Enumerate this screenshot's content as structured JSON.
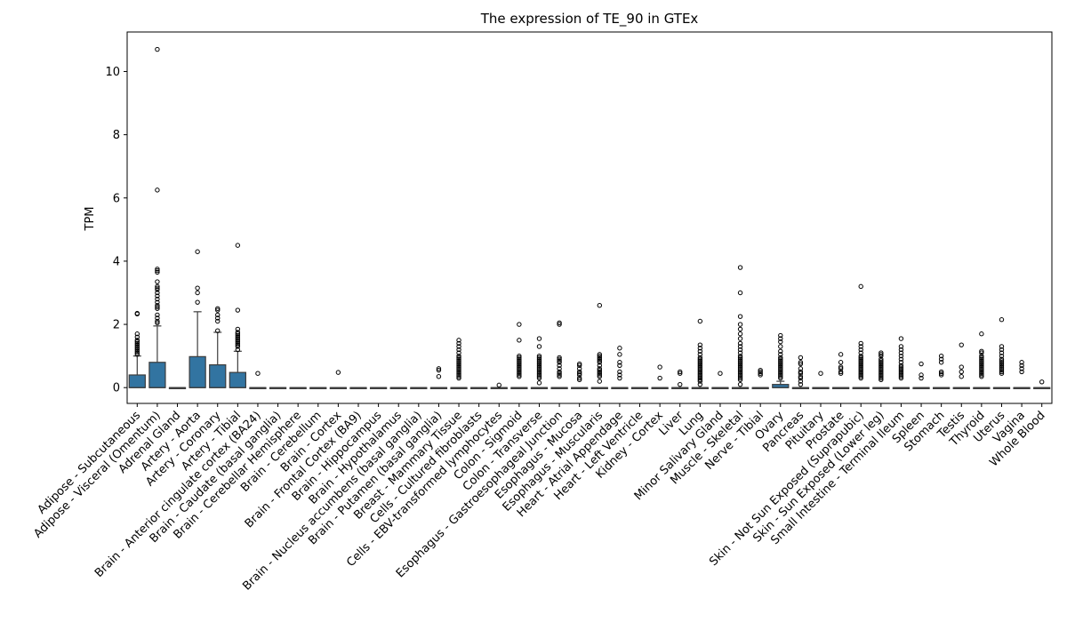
{
  "chart_data": {
    "type": "box",
    "title": "The expression of TE_90 in GTEx",
    "xlabel": "",
    "ylabel": "TPM",
    "ylim": [
      -0.5,
      11.25
    ],
    "yticks": [
      0,
      2,
      4,
      6,
      8,
      10
    ],
    "grid": false,
    "box_color": "#3274a1",
    "categories": [
      "Adipose - Subcutaneous",
      "Adipose - Visceral (Omentum)",
      "Adrenal Gland",
      "Artery - Aorta",
      "Artery - Coronary",
      "Artery - Tibial",
      "Brain - Anterior cingulate cortex (BA24)",
      "Brain - Caudate (basal ganglia)",
      "Brain - Cerebellar Hemisphere",
      "Brain - Cerebellum",
      "Brain - Cortex",
      "Brain - Frontal Cortex (BA9)",
      "Brain - Hippocampus",
      "Brain - Hypothalamus",
      "Brain - Nucleus accumbens (basal ganglia)",
      "Brain - Putamen (basal ganglia)",
      "Breast - Mammary Tissue",
      "Cells - Cultured fibroblasts",
      "Cells - EBV-transformed lymphocytes",
      "Colon - Sigmoid",
      "Colon - Transverse",
      "Esophagus - Gastroesophageal Junction",
      "Esophagus - Mucosa",
      "Esophagus - Muscularis",
      "Heart - Atrial Appendage",
      "Heart - Left Ventricle",
      "Kidney - Cortex",
      "Liver",
      "Lung",
      "Minor Salivary Gland",
      "Muscle - Skeletal",
      "Nerve - Tibial",
      "Ovary",
      "Pancreas",
      "Pituitary",
      "Prostate",
      "Skin - Not Sun Exposed (Suprapubic)",
      "Skin - Sun Exposed (Lower leg)",
      "Small Intestine - Terminal Ileum",
      "Spleen",
      "Stomach",
      "Testis",
      "Thyroid",
      "Uterus",
      "Vagina",
      "Whole Blood"
    ],
    "boxes": [
      {
        "q1": 0,
        "median": 0,
        "q3": 0.4,
        "whislo": 0,
        "whishi": 1.0,
        "fliers": [
          2.35,
          2.33,
          1.7,
          1.6,
          1.5,
          1.45,
          1.4,
          1.35,
          1.3,
          1.25,
          1.2,
          1.15,
          1.1,
          1.05
        ]
      },
      {
        "q1": 0,
        "median": 0,
        "q3": 0.8,
        "whislo": 0,
        "whishi": 1.95,
        "fliers": [
          10.7,
          6.25,
          3.75,
          3.7,
          3.65,
          3.35,
          3.2,
          3.15,
          3.1,
          3.0,
          2.9,
          2.8,
          2.7,
          2.6,
          2.55,
          2.5,
          2.3,
          2.2,
          2.1,
          2.05
        ]
      },
      {
        "q1": 0,
        "median": 0,
        "q3": 0,
        "whislo": 0,
        "whishi": 0,
        "fliers": []
      },
      {
        "q1": 0,
        "median": 0,
        "q3": 0.98,
        "whislo": 0,
        "whishi": 2.4,
        "fliers": [
          4.3,
          3.15,
          3.0,
          2.7
        ]
      },
      {
        "q1": 0,
        "median": 0,
        "q3": 0.72,
        "whislo": 0,
        "whishi": 1.75,
        "fliers": [
          2.5,
          2.45,
          2.3,
          2.2,
          2.1,
          1.8
        ]
      },
      {
        "q1": 0,
        "median": 0,
        "q3": 0.48,
        "whislo": 0,
        "whishi": 1.15,
        "fliers": [
          4.5,
          2.45,
          1.85,
          1.75,
          1.7,
          1.65,
          1.6,
          1.55,
          1.5,
          1.45,
          1.4,
          1.35,
          1.3,
          1.2
        ]
      },
      {
        "q1": 0,
        "median": 0,
        "q3": 0,
        "whislo": 0,
        "whishi": 0,
        "fliers": [
          0.45
        ]
      },
      {
        "q1": 0,
        "median": 0,
        "q3": 0,
        "whislo": 0,
        "whishi": 0,
        "fliers": []
      },
      {
        "q1": 0,
        "median": 0,
        "q3": 0,
        "whislo": 0,
        "whishi": 0,
        "fliers": []
      },
      {
        "q1": 0,
        "median": 0,
        "q3": 0,
        "whislo": 0,
        "whishi": 0,
        "fliers": []
      },
      {
        "q1": 0,
        "median": 0,
        "q3": 0,
        "whislo": 0,
        "whishi": 0,
        "fliers": [
          0.48
        ]
      },
      {
        "q1": 0,
        "median": 0,
        "q3": 0,
        "whislo": 0,
        "whishi": 0,
        "fliers": []
      },
      {
        "q1": 0,
        "median": 0,
        "q3": 0,
        "whislo": 0,
        "whishi": 0,
        "fliers": []
      },
      {
        "q1": 0,
        "median": 0,
        "q3": 0,
        "whislo": 0,
        "whishi": 0,
        "fliers": []
      },
      {
        "q1": 0,
        "median": 0,
        "q3": 0,
        "whislo": 0,
        "whishi": 0,
        "fliers": []
      },
      {
        "q1": 0,
        "median": 0,
        "q3": 0,
        "whislo": 0,
        "whishi": 0,
        "fliers": [
          0.6,
          0.55,
          0.35
        ]
      },
      {
        "q1": 0,
        "median": 0,
        "q3": 0,
        "whislo": 0,
        "whishi": 0,
        "fliers": [
          1.5,
          1.4,
          1.3,
          1.2,
          1.1,
          1.0,
          0.95,
          0.9,
          0.85,
          0.8,
          0.75,
          0.7,
          0.65,
          0.6,
          0.55,
          0.5,
          0.45,
          0.4,
          0.35,
          0.3
        ]
      },
      {
        "q1": 0,
        "median": 0,
        "q3": 0,
        "whislo": 0,
        "whishi": 0,
        "fliers": []
      },
      {
        "q1": 0,
        "median": 0,
        "q3": 0,
        "whislo": 0,
        "whishi": 0,
        "fliers": [
          0.08
        ]
      },
      {
        "q1": 0,
        "median": 0,
        "q3": 0,
        "whislo": 0,
        "whishi": 0,
        "fliers": [
          2.0,
          1.5,
          1.0,
          0.95,
          0.9,
          0.85,
          0.8,
          0.75,
          0.7,
          0.65,
          0.6,
          0.55,
          0.5,
          0.45,
          0.4,
          0.35
        ]
      },
      {
        "q1": 0,
        "median": 0,
        "q3": 0,
        "whislo": 0,
        "whishi": 0,
        "fliers": [
          1.55,
          1.3,
          1.0,
          0.95,
          0.9,
          0.85,
          0.8,
          0.75,
          0.7,
          0.65,
          0.6,
          0.55,
          0.5,
          0.45,
          0.4,
          0.35,
          0.3,
          0.15
        ]
      },
      {
        "q1": 0,
        "median": 0,
        "q3": 0,
        "whislo": 0,
        "whishi": 0,
        "fliers": [
          2.05,
          2.0,
          0.95,
          0.9,
          0.85,
          0.8,
          0.7,
          0.6,
          0.5,
          0.45,
          0.4,
          0.35
        ]
      },
      {
        "q1": 0,
        "median": 0,
        "q3": 0,
        "whislo": 0,
        "whishi": 0,
        "fliers": [
          0.75,
          0.7,
          0.6,
          0.5,
          0.45,
          0.4,
          0.3,
          0.25
        ]
      },
      {
        "q1": 0,
        "median": 0,
        "q3": 0,
        "whislo": 0,
        "whishi": 0,
        "fliers": [
          2.6,
          1.05,
          1.0,
          0.95,
          0.9,
          0.85,
          0.8,
          0.7,
          0.6,
          0.55,
          0.5,
          0.45,
          0.4,
          0.35,
          0.2
        ]
      },
      {
        "q1": 0,
        "median": 0,
        "q3": 0,
        "whislo": 0,
        "whishi": 0,
        "fliers": [
          1.25,
          1.05,
          0.8,
          0.7,
          0.5,
          0.4,
          0.3
        ]
      },
      {
        "q1": 0,
        "median": 0,
        "q3": 0,
        "whislo": 0,
        "whishi": 0,
        "fliers": []
      },
      {
        "q1": 0,
        "median": 0,
        "q3": 0,
        "whislo": 0,
        "whishi": 0,
        "fliers": [
          0.65,
          0.3
        ]
      },
      {
        "q1": 0,
        "median": 0,
        "q3": 0,
        "whislo": 0,
        "whishi": 0,
        "fliers": [
          0.5,
          0.45,
          0.1
        ]
      },
      {
        "q1": 0,
        "median": 0,
        "q3": 0,
        "whislo": 0,
        "whishi": 0,
        "fliers": [
          2.1,
          1.35,
          1.25,
          1.15,
          1.05,
          0.95,
          0.9,
          0.85,
          0.8,
          0.75,
          0.7,
          0.65,
          0.6,
          0.55,
          0.5,
          0.45,
          0.4,
          0.35,
          0.3,
          0.25,
          0.2,
          0.1
        ]
      },
      {
        "q1": 0,
        "median": 0,
        "q3": 0,
        "whislo": 0,
        "whishi": 0,
        "fliers": [
          0.45
        ]
      },
      {
        "q1": 0,
        "median": 0,
        "q3": 0,
        "whislo": 0,
        "whishi": 0,
        "fliers": [
          3.8,
          3.0,
          2.25,
          2.0,
          1.85,
          1.7,
          1.55,
          1.4,
          1.3,
          1.2,
          1.1,
          1.0,
          0.95,
          0.9,
          0.85,
          0.8,
          0.75,
          0.7,
          0.65,
          0.6,
          0.55,
          0.5,
          0.45,
          0.4,
          0.35,
          0.3,
          0.25,
          0.1
        ]
      },
      {
        "q1": 0,
        "median": 0,
        "q3": 0,
        "whislo": 0,
        "whishi": 0,
        "fliers": [
          0.55,
          0.5,
          0.45,
          0.4
        ]
      },
      {
        "q1": 0,
        "median": 0,
        "q3": 0.1,
        "whislo": 0,
        "whishi": 0.2,
        "fliers": [
          1.65,
          1.55,
          1.45,
          1.3,
          1.15,
          1.05,
          0.95,
          0.9,
          0.85,
          0.8,
          0.75,
          0.7,
          0.65,
          0.6,
          0.55,
          0.5,
          0.45,
          0.4,
          0.35,
          0.3
        ]
      },
      {
        "q1": 0,
        "median": 0,
        "q3": 0,
        "whislo": 0,
        "whishi": 0,
        "fliers": [
          0.95,
          0.8,
          0.75,
          0.6,
          0.5,
          0.45,
          0.35,
          0.3,
          0.2,
          0.1
        ]
      },
      {
        "q1": 0,
        "median": 0,
        "q3": 0,
        "whislo": 0,
        "whishi": 0,
        "fliers": [
          0.45
        ]
      },
      {
        "q1": 0,
        "median": 0,
        "q3": 0,
        "whislo": 0,
        "whishi": 0,
        "fliers": [
          1.05,
          0.8,
          0.65,
          0.6,
          0.5,
          0.45
        ]
      },
      {
        "q1": 0,
        "median": 0,
        "q3": 0,
        "whislo": 0,
        "whishi": 0,
        "fliers": [
          3.2,
          1.4,
          1.3,
          1.2,
          1.1,
          1.0,
          0.95,
          0.9,
          0.85,
          0.8,
          0.75,
          0.7,
          0.65,
          0.6,
          0.55,
          0.5,
          0.45,
          0.4,
          0.35,
          0.3
        ]
      },
      {
        "q1": 0,
        "median": 0,
        "q3": 0,
        "whislo": 0,
        "whishi": 0,
        "fliers": [
          1.1,
          1.05,
          1.0,
          0.9,
          0.85,
          0.8,
          0.75,
          0.7,
          0.65,
          0.6,
          0.55,
          0.5,
          0.45,
          0.4,
          0.35,
          0.3,
          0.25
        ]
      },
      {
        "q1": 0,
        "median": 0,
        "q3": 0,
        "whislo": 0,
        "whishi": 0,
        "fliers": [
          1.55,
          1.3,
          1.2,
          1.1,
          1.0,
          0.9,
          0.8,
          0.7,
          0.65,
          0.6,
          0.55,
          0.5,
          0.45,
          0.4,
          0.35,
          0.3
        ]
      },
      {
        "q1": 0,
        "median": 0,
        "q3": 0,
        "whislo": 0,
        "whishi": 0,
        "fliers": [
          0.75,
          0.4,
          0.3
        ]
      },
      {
        "q1": 0,
        "median": 0,
        "q3": 0,
        "whislo": 0,
        "whishi": 0,
        "fliers": [
          1.0,
          0.9,
          0.8,
          0.5,
          0.45,
          0.4
        ]
      },
      {
        "q1": 0,
        "median": 0,
        "q3": 0,
        "whislo": 0,
        "whishi": 0,
        "fliers": [
          1.35,
          0.65,
          0.5,
          0.35
        ]
      },
      {
        "q1": 0,
        "median": 0,
        "q3": 0,
        "whislo": 0,
        "whishi": 0,
        "fliers": [
          1.7,
          1.15,
          1.1,
          1.0,
          0.95,
          0.9,
          0.85,
          0.8,
          0.75,
          0.7,
          0.65,
          0.6,
          0.55,
          0.5,
          0.45,
          0.4,
          0.35
        ]
      },
      {
        "q1": 0,
        "median": 0,
        "q3": 0,
        "whislo": 0,
        "whishi": 0,
        "fliers": [
          2.15,
          1.3,
          1.2,
          1.1,
          1.0,
          0.9,
          0.85,
          0.8,
          0.75,
          0.7,
          0.65,
          0.6,
          0.55,
          0.5,
          0.45
        ]
      },
      {
        "q1": 0,
        "median": 0,
        "q3": 0,
        "whislo": 0,
        "whishi": 0,
        "fliers": [
          0.8,
          0.7,
          0.6,
          0.5
        ]
      },
      {
        "q1": 0,
        "median": 0,
        "q3": 0,
        "whislo": 0,
        "whishi": 0,
        "fliers": [
          0.18
        ]
      }
    ]
  }
}
